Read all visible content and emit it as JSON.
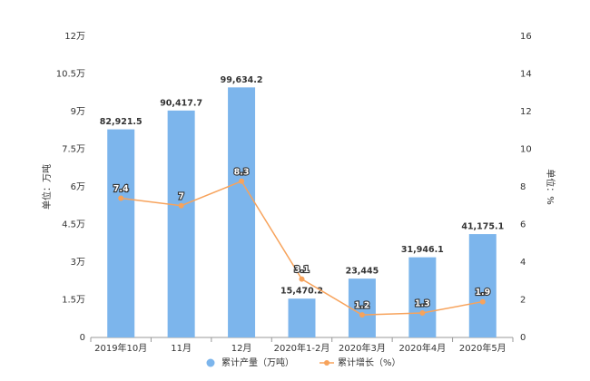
{
  "chart_data": {
    "type": "bar",
    "y_axis_label": "单位：万吨",
    "y2_axis_label": "单位：%",
    "categories": [
      "2019年10月",
      "11月",
      "12月",
      "2020年1-2月",
      "2020年3月",
      "2020年4月",
      "2020年5月"
    ],
    "series": [
      {
        "name": "累计产量（万吨）",
        "type": "bar",
        "color": "#7cb5ec",
        "values": [
          82921.5,
          90417.7,
          99634.2,
          15470.2,
          23445,
          31946.1,
          41175.1
        ],
        "value_labels": [
          "82,921.5",
          "90,417.7",
          "99,634.2",
          "15,470.2",
          "23,445",
          "31,946.1",
          "41,175.1"
        ]
      },
      {
        "name": "累计增长（%）",
        "type": "line",
        "color": "#f7a35c",
        "axis": "y2",
        "values": [
          7.4,
          7,
          8.3,
          3.1,
          1.2,
          1.3,
          1.9
        ]
      }
    ],
    "ylim": [
      0,
      120000
    ],
    "yticks": [
      0,
      {
        "value": 15000,
        "label": "1.5万"
      },
      {
        "value": 30000,
        "label": "3万"
      },
      {
        "value": 45000,
        "label": "4.5万"
      },
      {
        "value": 60000,
        "label": "6万"
      },
      {
        "value": 75000,
        "label": "7.5万"
      },
      {
        "value": 90000,
        "label": "9万"
      },
      {
        "value": 105000,
        "label": "10.5万"
      },
      {
        "value": 120000,
        "label": "12万"
      }
    ],
    "y2lim": [
      0,
      16
    ],
    "y2ticks": [
      0,
      2,
      4,
      6,
      8,
      10,
      12,
      14,
      16
    ],
    "grid": false
  }
}
